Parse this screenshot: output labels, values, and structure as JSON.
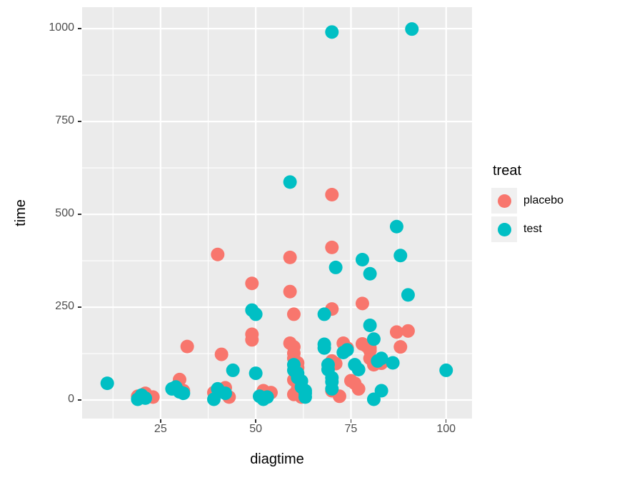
{
  "chart_data": {
    "type": "scatter",
    "title": "",
    "xlabel": "diagtime",
    "ylabel": "time",
    "legend_title": "treat",
    "legend_position": "right",
    "grid": true,
    "panel_bg": "#EBEBEB",
    "grid_color": "#FFFFFF",
    "tick_label_color": "#4D4D4D",
    "xlim": [
      4.4,
      106.8
    ],
    "ylim": [
      -50,
      1058
    ],
    "x_ticks": [
      25,
      50,
      75,
      100
    ],
    "y_ticks": [
      0,
      250,
      500,
      750,
      1000
    ],
    "x_minor": [
      12.5,
      37.5,
      62.5,
      87.5
    ],
    "y_minor": [
      125,
      375,
      625,
      875
    ],
    "point_radius": 9.5,
    "series": [
      {
        "name": "placebo",
        "color": "#F8766D",
        "points": [
          [
            19,
            10
          ],
          [
            21,
            18
          ],
          [
            23,
            8
          ],
          [
            30,
            55
          ],
          [
            31,
            25
          ],
          [
            32,
            144
          ],
          [
            39,
            20
          ],
          [
            40,
            392
          ],
          [
            41,
            123
          ],
          [
            42,
            33
          ],
          [
            43,
            8
          ],
          [
            49,
            314
          ],
          [
            49,
            177
          ],
          [
            49,
            162
          ],
          [
            52,
            25
          ],
          [
            54,
            20
          ],
          [
            59,
            384
          ],
          [
            59,
            292
          ],
          [
            59,
            153
          ],
          [
            60,
            231
          ],
          [
            60,
            143
          ],
          [
            60,
            126
          ],
          [
            60,
            112
          ],
          [
            60,
            54
          ],
          [
            60,
            15
          ],
          [
            61,
            100
          ],
          [
            61,
            87
          ],
          [
            61,
            30
          ],
          [
            62,
            8
          ],
          [
            70,
            553
          ],
          [
            70,
            411
          ],
          [
            70,
            245
          ],
          [
            70,
            105
          ],
          [
            70,
            25
          ],
          [
            71,
            98
          ],
          [
            72,
            10
          ],
          [
            73,
            153
          ],
          [
            74,
            140
          ],
          [
            75,
            52
          ],
          [
            76,
            45
          ],
          [
            77,
            30
          ],
          [
            78,
            260
          ],
          [
            78,
            151
          ],
          [
            79,
            146
          ],
          [
            80,
            140
          ],
          [
            80,
            133
          ],
          [
            80,
            112
          ],
          [
            81,
            95
          ],
          [
            83,
            99
          ],
          [
            87,
            183
          ],
          [
            88,
            143
          ],
          [
            90,
            186
          ]
        ]
      },
      {
        "name": "test",
        "color": "#00BFC4",
        "points": [
          [
            11,
            45
          ],
          [
            19,
            2
          ],
          [
            20,
            13
          ],
          [
            21,
            5
          ],
          [
            28,
            30
          ],
          [
            29,
            35
          ],
          [
            30,
            22
          ],
          [
            31,
            18
          ],
          [
            39,
            2
          ],
          [
            40,
            30
          ],
          [
            42,
            18
          ],
          [
            44,
            80
          ],
          [
            49,
            242
          ],
          [
            50,
            231
          ],
          [
            50,
            72
          ],
          [
            51,
            10
          ],
          [
            52,
            2
          ],
          [
            53,
            8
          ],
          [
            59,
            587
          ],
          [
            60,
            95
          ],
          [
            60,
            80
          ],
          [
            61,
            72
          ],
          [
            61,
            60
          ],
          [
            62,
            51
          ],
          [
            62,
            35
          ],
          [
            63,
            25
          ],
          [
            63,
            18
          ],
          [
            63,
            8
          ],
          [
            68,
            231
          ],
          [
            68,
            150
          ],
          [
            68,
            140
          ],
          [
            69,
            95
          ],
          [
            69,
            82
          ],
          [
            70,
            60
          ],
          [
            70,
            49
          ],
          [
            70,
            30
          ],
          [
            70,
            991
          ],
          [
            71,
            357
          ],
          [
            73,
            128
          ],
          [
            74,
            135
          ],
          [
            76,
            95
          ],
          [
            77,
            82
          ],
          [
            78,
            378
          ],
          [
            80,
            340
          ],
          [
            80,
            201
          ],
          [
            81,
            164
          ],
          [
            81,
            2
          ],
          [
            82,
            105
          ],
          [
            83,
            112
          ],
          [
            83,
            25
          ],
          [
            86,
            100
          ],
          [
            87,
            467
          ],
          [
            88,
            389
          ],
          [
            90,
            283
          ],
          [
            91,
            999
          ],
          [
            100,
            80
          ]
        ]
      }
    ]
  }
}
